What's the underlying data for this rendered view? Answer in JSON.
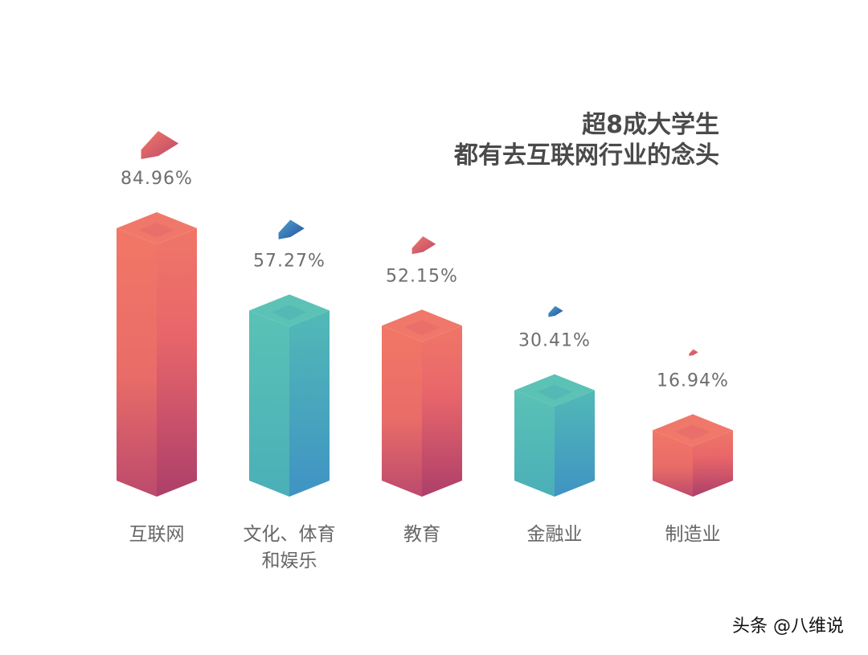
{
  "chart_data": {
    "type": "bar",
    "title_lines": [
      "超8成大学生",
      "都有去互联网行业的念头"
    ],
    "categories": [
      [
        "互联网"
      ],
      [
        "文化、体育",
        "和娱乐"
      ],
      [
        "教育"
      ],
      [
        "金融业"
      ],
      [
        "制造业"
      ]
    ],
    "values": [
      84.96,
      57.27,
      52.15,
      30.41,
      16.94
    ],
    "value_labels": [
      "84.96%",
      "57.27%",
      "52.15%",
      "30.41%",
      "16.94%"
    ],
    "unit": "%",
    "ylim": [
      0,
      100
    ],
    "grid": false,
    "legend": "none"
  },
  "colors": {
    "coral": "#f07668",
    "coral_dark": "#b7476c",
    "teal": "#55bdb5",
    "teal_dark": "#3d95c2",
    "blue_gem": "#2f6fb5",
    "text": "#4a4a4a"
  },
  "bar_colors": [
    "coral",
    "teal",
    "coral",
    "teal",
    "coral"
  ],
  "gem_colors": [
    "coral",
    "blue",
    "coral",
    "blue",
    "coral"
  ],
  "watermark": "头条 @八维说"
}
